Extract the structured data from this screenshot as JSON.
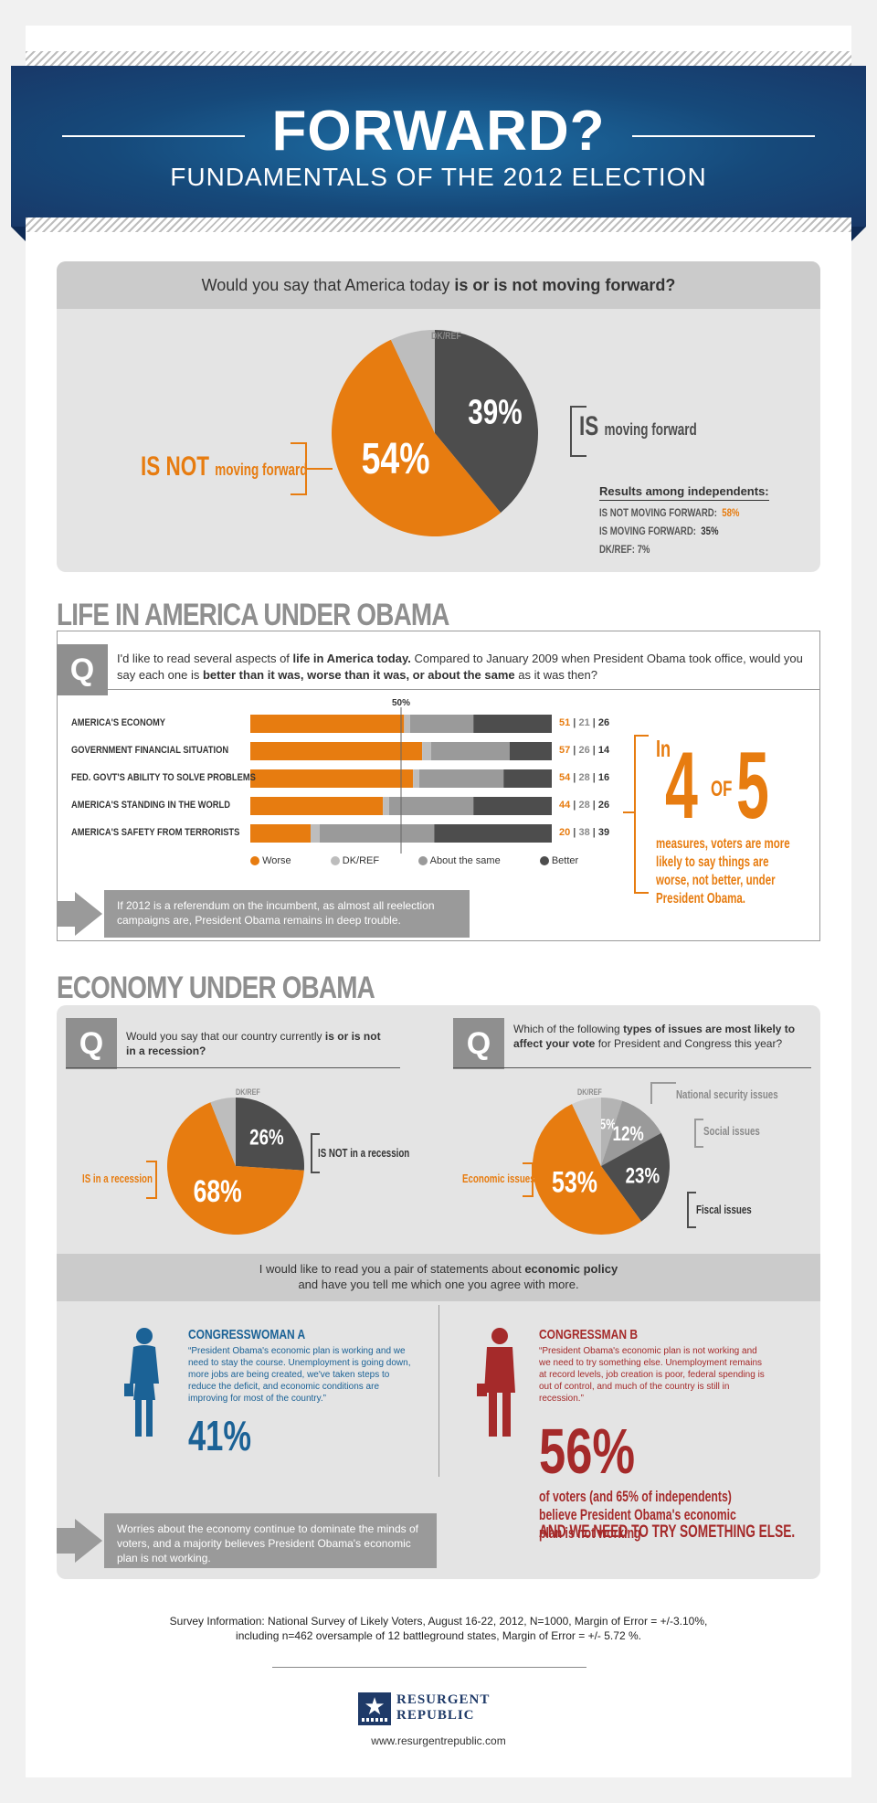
{
  "header": {
    "title": "FORWARD?",
    "subtitle": "FUNDAMENTALS OF THE 2012 ELECTION"
  },
  "q1": {
    "question_pre": "Would you say that America today ",
    "question_bold": "is or is not moving forward?",
    "is_not_big": "IS NOT",
    "is_not_small": "moving forward",
    "is_big": "IS",
    "is_small": "moving forward",
    "dk_label": "DK/REF",
    "independents_title": "Results among independents:",
    "ind_not_label": "IS NOT MOVING FORWARD:",
    "ind_not_value": "58%",
    "ind_is_label": "IS MOVING FORWARD:",
    "ind_is_value": "35%",
    "ind_dk": "DK/REF: 7%"
  },
  "life": {
    "heading": "LIFE IN AMERICA UNDER OBAMA",
    "q_letter": "Q",
    "q_t1": "I'd like to read several aspects of ",
    "q_b1": "life in America today.",
    "q_t2": " Compared to January 2009 when President Obama took office, would you say each one is ",
    "q_b2": "better than it was, worse than it was, or about the same",
    "q_t3": " as it was then?",
    "fifty_label": "50%",
    "legend": [
      "Worse",
      "DK/REF",
      "About the same",
      "Better"
    ],
    "callout_in": "In",
    "callout_4": "4",
    "callout_of": "OF",
    "callout_5": "5",
    "callout_text": "measures, voters are more likely to say things are worse, not better, under President Obama.",
    "takeaway": "If 2012 is a referendum on the incumbent, as almost all reelection campaigns are, President Obama remains in deep trouble."
  },
  "economy": {
    "heading": "ECONOMY UNDER OBAMA",
    "q2_t1": "Would you say that our country currently ",
    "q2_b1": "is or is not in a recession?",
    "q2_in": "IS in a recession",
    "q2_not": "IS NOT in a recession",
    "q2_dk": "DK/REF",
    "q3_t1": "Which of the following ",
    "q3_b1": "types of issues are most likely to affect your vote",
    "q3_t2": " for President and Congress this year?",
    "q3_dk": "DK/REF",
    "q3_econ": "Economic issues",
    "q3_nat": "National security issues",
    "q3_soc": "Social issues",
    "q3_fis": "Fiscal issues",
    "pair_t1": "I would like to read you a pair of statements about ",
    "pair_b1": "economic policy",
    "pair_t2": "and have you tell me which one you agree with more.",
    "a_title": "CONGRESSWOMAN A",
    "a_quote": "“President Obama's economic plan is working and we need to stay the course. Unemployment is going down, more jobs are being created, we've taken steps to reduce the deficit, and economic conditions are improving for most of the country.”",
    "a_pct": "41%",
    "b_title": "CONGRESSMAN B",
    "b_quote": "“President Obama's economic plan is not working and we need to try something else. Unemployment remains at record levels, job creation is poor, federal spending is out of control, and much of the country is still in recession.”",
    "b_pct": "56%",
    "b_text1": "of voters (and 65% of independents) believe President Obama's economic plan is not working",
    "b_text2": "AND WE NEED TO TRY SOMETHING ELSE.",
    "takeaway": "Worries about the economy continue to dominate the minds of voters, and a majority believes President Obama's economic plan is not working."
  },
  "footer": {
    "survey": "Survey Information:  National Survey of Likely Voters, August 16-22, 2012, N=1000, Margin of Error = +/-3.10%, including n=462 oversample of 12 battleground states, Margin of Error = +/- 5.72 %.",
    "logo_line1": "RESURGENT",
    "logo_line2": "REPUBLIC",
    "url": "www.resurgentrepublic.com"
  },
  "colors": {
    "worse": "#e77c10",
    "dk": "#bdbdbd",
    "same": "#9a9a9a",
    "better": "#4d4d4d",
    "congresswoman": "#1b6296",
    "congressman": "#a52a2a"
  },
  "chart_data": [
    {
      "type": "pie",
      "labels": [
        "IS NOT moving forward",
        "IS moving forward",
        "DK/REF"
      ],
      "values": [
        54,
        39,
        7
      ],
      "value_labels": [
        "54%",
        "39%",
        ""
      ]
    },
    {
      "type": "bar",
      "stacked": true,
      "orientation": "horizontal",
      "categories": [
        "AMERICA'S ECONOMY",
        "GOVERNMENT FINANCIAL SITUATION",
        "FED. GOVT'S ABILITY TO SOLVE PROBLEMS",
        "AMERICA'S STANDING IN THE WORLD",
        "AMERICA'S SAFETY FROM TERRORISTS"
      ],
      "series": [
        {
          "name": "Worse",
          "values": [
            51,
            57,
            54,
            44,
            20
          ]
        },
        {
          "name": "DK/REF",
          "values": [
            2,
            3,
            2,
            2,
            3
          ]
        },
        {
          "name": "About the same",
          "values": [
            21,
            26,
            28,
            28,
            38
          ]
        },
        {
          "name": "Better",
          "values": [
            26,
            14,
            16,
            26,
            39
          ]
        }
      ],
      "value_labels": [
        [
          "51",
          "21",
          "26"
        ],
        [
          "57",
          "26",
          "14"
        ],
        [
          "54",
          "28",
          "16"
        ],
        [
          "44",
          "28",
          "26"
        ],
        [
          "20",
          "38",
          "39"
        ]
      ],
      "xlim": [
        0,
        100
      ]
    },
    {
      "type": "pie",
      "labels": [
        "IS in a recession",
        "IS NOT in a recession",
        "DK/REF"
      ],
      "values": [
        68,
        26,
        6
      ],
      "value_labels": [
        "68%",
        "26%",
        ""
      ]
    },
    {
      "type": "pie",
      "labels": [
        "Economic issues",
        "Fiscal issues",
        "Social issues",
        "National security issues",
        "DK/REF"
      ],
      "values": [
        53,
        23,
        12,
        5,
        7
      ],
      "value_labels": [
        "53%",
        "23%",
        "12%",
        "5%",
        ""
      ]
    }
  ]
}
